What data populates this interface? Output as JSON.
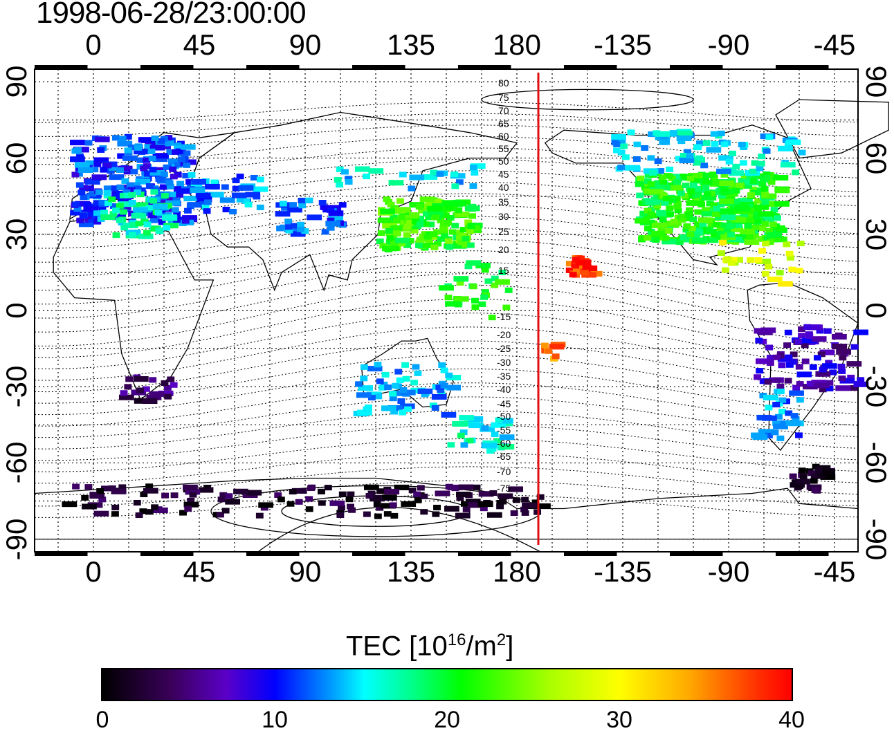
{
  "timestamp": "1998-06-28/23:00:00",
  "map": {
    "lon_top_labels": [
      "0",
      "45",
      "90",
      "135",
      "180",
      "-135",
      "-90",
      "-45"
    ],
    "lon_bottom_labels": [
      "0",
      "45",
      "90",
      "135",
      "180",
      "-135",
      "-90",
      "-45"
    ],
    "lat_left_labels": [
      "90",
      "60",
      "30",
      "0",
      "-30",
      "-60",
      "-90"
    ],
    "lat_right_labels": [
      "90",
      "60",
      "30",
      "0",
      "-30",
      "-60",
      "-90"
    ],
    "contour_labels": [
      "80",
      "75",
      "70",
      "65",
      "60",
      "55",
      "50",
      "45",
      "40",
      "35",
      "30",
      "25",
      "20",
      "15",
      "-15",
      "-20",
      "-25",
      "-30",
      "-35",
      "-40",
      "-45",
      "-50",
      "-55",
      "-60",
      "-65",
      "-70",
      "-75"
    ],
    "reference_line_color": "#e01010",
    "lon_range": [
      -25,
      325
    ],
    "lat_range": [
      -95,
      95
    ]
  },
  "colorbar": {
    "title_prefix": "TEC  [10",
    "title_exp": "16",
    "title_mid": "/m",
    "title_exp2": "2",
    "title_suffix": "]",
    "tick_labels": [
      "0",
      "10",
      "20",
      "30",
      "40"
    ],
    "range": [
      0,
      40
    ]
  }
}
